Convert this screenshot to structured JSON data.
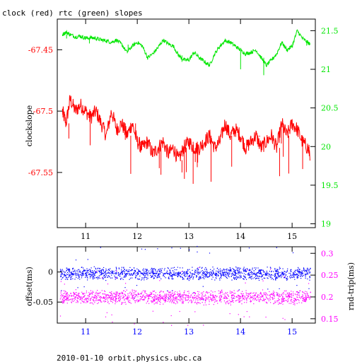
{
  "title": "clock (red) rtc (green) slopes",
  "footer": "2010-01-10 orbit.physics.ubc.ca",
  "colors": {
    "clock": "#ff0000",
    "rtc": "#00e600",
    "offset": "#0000ff",
    "rndtrip": "#ff00ff",
    "axis": "#000000"
  },
  "chart_data": [
    {
      "type": "line",
      "ylabel": "clockslope",
      "y2label": "",
      "xlim": [
        10.45,
        15.45
      ],
      "xticks": [
        "11",
        "12",
        "13",
        "14",
        "15"
      ],
      "xtick_values": [
        11,
        12,
        13,
        14,
        15
      ],
      "left_axis": {
        "ylim": [
          -67.595,
          -67.425
        ],
        "ticks": [
          "-67.45",
          "-67.5",
          "-67.55"
        ],
        "tick_values": [
          -67.45,
          -67.5,
          -67.55
        ]
      },
      "right_axis": {
        "ylim": [
          18.95,
          21.65
        ],
        "ticks": [
          "21.5",
          "21",
          "20.5",
          "20",
          "19.5",
          "19"
        ],
        "tick_values": [
          21.5,
          21.0,
          20.5,
          20.0,
          19.5,
          19.0
        ]
      },
      "series": [
        {
          "axis": "left",
          "x": [
            10.55,
            10.62,
            10.7,
            10.8,
            10.9,
            11.0,
            11.1,
            11.2,
            11.3,
            11.4,
            11.5,
            11.6,
            11.7,
            11.8,
            11.9,
            12.0,
            12.1,
            12.2,
            12.3,
            12.4,
            12.5,
            12.6,
            12.7,
            12.8,
            12.9,
            13.0,
            13.1,
            13.2,
            13.3,
            13.4,
            13.5,
            13.6,
            13.7,
            13.8,
            13.9,
            14.0,
            14.1,
            14.2,
            14.3,
            14.4,
            14.5,
            14.6,
            14.7,
            14.8,
            14.9,
            15.0,
            15.1,
            15.2,
            15.3,
            15.35
          ],
          "y": [
            -67.5,
            -67.51,
            -67.49,
            -67.5,
            -67.495,
            -67.5,
            -67.505,
            -67.5,
            -67.51,
            -67.52,
            -67.5,
            -67.515,
            -67.51,
            -67.52,
            -67.51,
            -67.525,
            -67.53,
            -67.525,
            -67.535,
            -67.53,
            -67.525,
            -67.535,
            -67.53,
            -67.54,
            -67.53,
            -67.525,
            -67.53,
            -67.53,
            -67.525,
            -67.52,
            -67.53,
            -67.525,
            -67.51,
            -67.52,
            -67.515,
            -67.52,
            -67.53,
            -67.525,
            -67.52,
            -67.53,
            -67.525,
            -67.52,
            -67.53,
            -67.51,
            -67.52,
            -67.51,
            -67.515,
            -67.525,
            -67.53,
            -67.535
          ]
        },
        {
          "axis": "right",
          "x": [
            10.55,
            10.62,
            10.7,
            10.8,
            10.9,
            11.0,
            11.1,
            11.2,
            11.3,
            11.4,
            11.5,
            11.6,
            11.7,
            11.8,
            11.9,
            12.0,
            12.1,
            12.2,
            12.3,
            12.4,
            12.5,
            12.6,
            12.7,
            12.8,
            12.9,
            13.0,
            13.1,
            13.2,
            13.3,
            13.4,
            13.5,
            13.6,
            13.7,
            13.8,
            13.9,
            14.0,
            14.1,
            14.2,
            14.3,
            14.4,
            14.5,
            14.6,
            14.7,
            14.8,
            14.9,
            15.0,
            15.1,
            15.2,
            15.3,
            15.35
          ],
          "y": [
            21.45,
            21.48,
            21.45,
            21.42,
            21.43,
            21.4,
            21.41,
            21.4,
            21.38,
            21.37,
            21.35,
            21.38,
            21.32,
            21.22,
            21.3,
            21.35,
            21.3,
            21.15,
            21.2,
            21.28,
            21.38,
            21.33,
            21.3,
            21.18,
            21.12,
            21.12,
            21.22,
            21.15,
            21.1,
            21.05,
            21.2,
            21.3,
            21.37,
            21.35,
            21.3,
            21.25,
            21.2,
            21.22,
            21.25,
            21.15,
            21.05,
            21.12,
            21.2,
            21.35,
            21.25,
            21.3,
            21.5,
            21.4,
            21.35,
            21.32
          ]
        }
      ]
    },
    {
      "type": "scatter",
      "ylabel": "offset(ms)",
      "y2label": "rnd-trip(ms)",
      "xlim": [
        10.45,
        15.45
      ],
      "xticks": [
        "11",
        "12",
        "13",
        "14",
        "15"
      ],
      "xtick_values": [
        11,
        12,
        13,
        14,
        15
      ],
      "left_axis": {
        "ylim": [
          -0.085,
          0.042
        ],
        "ticks": [
          "0",
          "-0.05"
        ],
        "tick_values": [
          0,
          -0.05
        ]
      },
      "right_axis": {
        "ylim": [
          0.14,
          0.315
        ],
        "ticks": [
          "0.3",
          "0.25",
          "0.2",
          "0.15"
        ],
        "tick_values": [
          0.3,
          0.25,
          0.2,
          0.15
        ]
      },
      "series": [
        {
          "axis": "left",
          "x": [
            10.5,
            15.35
          ],
          "y_center": [
            -0.002,
            -0.002
          ],
          "y_spread": 0.012
        },
        {
          "axis": "right",
          "x": [
            10.5,
            15.35
          ],
          "y_center": [
            0.2,
            0.2
          ],
          "y_spread": 0.018
        }
      ]
    }
  ]
}
